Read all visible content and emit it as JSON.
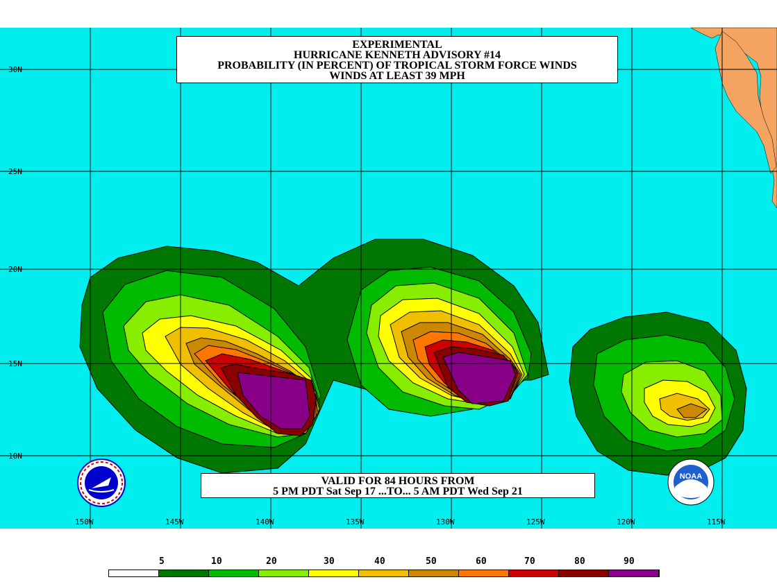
{
  "title": {
    "line1": "EXPERIMENTAL",
    "line2": "HURRICANE KENNETH ADVISORY #14",
    "line3": "PROBABILITY (IN PERCENT) OF TROPICAL STORM FORCE WINDS",
    "line4": "WINDS AT LEAST 39 MPH"
  },
  "valid": {
    "line1": "VALID FOR 84 HOURS FROM",
    "line2": "5 PM PDT Sat Sep 17 ...TO... 5 AM PDT Wed Sep 21"
  },
  "latitude_labels": [
    "30N",
    "25N",
    "20N",
    "15N",
    "10N"
  ],
  "longitude_labels": [
    "150W",
    "145W",
    "140W",
    "135W",
    "130W",
    "125W",
    "120W",
    "115W"
  ],
  "legend": {
    "values": [
      "5",
      "10",
      "20",
      "30",
      "40",
      "50",
      "60",
      "70",
      "80",
      "90"
    ],
    "colors": [
      "#ffffff",
      "#007700",
      "#00bb00",
      "#88ee00",
      "#ffff00",
      "#f0c000",
      "#cc8800",
      "#ff7700",
      "#cc0000",
      "#880000",
      "#880088"
    ]
  },
  "map_colors": {
    "ocean": "#00eeee",
    "land": "#f4a460",
    "grid": "#000000"
  },
  "logos": {
    "left": "nws-logo",
    "right": "noaa-logo",
    "right_text": "NOAA"
  }
}
